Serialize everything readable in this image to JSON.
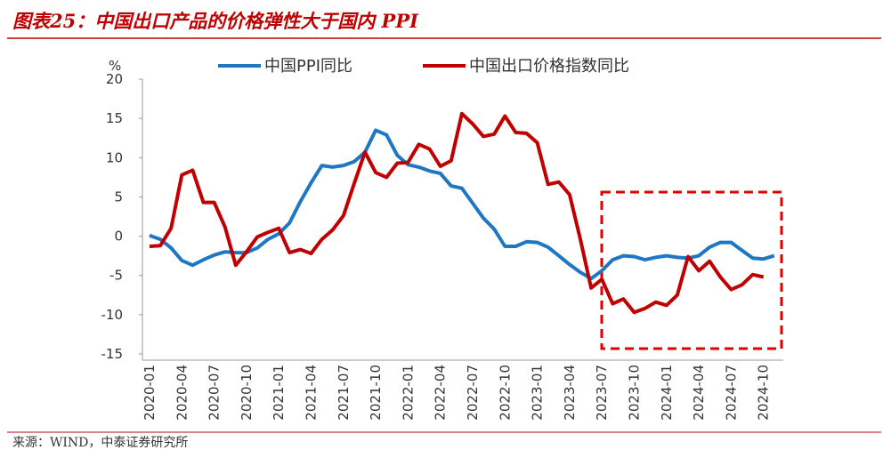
{
  "chart_data": {
    "type": "line",
    "title": "图表25：中国出口产品的价格弹性大于国内 PPI",
    "y_label": "%",
    "source": "来源：WIND，中泰证券研究所",
    "categories": [
      "2020-01",
      null,
      null,
      "2020-04",
      null,
      null,
      "2020-07",
      null,
      null,
      "2020-10",
      null,
      null,
      "2021-01",
      null,
      null,
      "2021-04",
      null,
      null,
      "2021-07",
      null,
      null,
      "2021-10",
      null,
      null,
      "2022-01",
      null,
      null,
      "2022-04",
      null,
      null,
      "2022-07",
      null,
      null,
      "2022-10",
      null,
      null,
      "2023-01",
      null,
      null,
      "2023-04",
      null,
      null,
      "2023-07",
      null,
      null,
      "2023-10",
      null,
      null,
      "2024-01",
      null,
      null,
      "2024-04",
      null,
      null,
      "2024-07",
      null,
      null,
      "2024-10",
      null
    ],
    "series": [
      {
        "name": "中国PPI同比",
        "color": "#1f77c4",
        "values": [
          0.1,
          -0.4,
          -1.5,
          -3.1,
          -3.7,
          -3.0,
          -2.4,
          -2.0,
          -2.1,
          -2.1,
          -1.5,
          -0.4,
          0.3,
          1.7,
          4.4,
          6.8,
          9.0,
          8.8,
          9.0,
          9.5,
          10.7,
          13.5,
          12.9,
          10.3,
          9.1,
          8.8,
          8.3,
          8.0,
          6.4,
          6.1,
          4.2,
          2.3,
          0.9,
          -1.3,
          -1.3,
          -0.7,
          -0.8,
          -1.4,
          -2.5,
          -3.6,
          -4.6,
          -5.4,
          -4.4,
          -3.0,
          -2.5,
          -2.6,
          -3.0,
          -2.7,
          -2.5,
          -2.7,
          -2.8,
          -2.5,
          -1.4,
          -0.8,
          -0.8,
          -1.8,
          -2.8,
          -2.9,
          -2.5
        ]
      },
      {
        "name": "中国出口价格指数同比",
        "color": "#c00000",
        "values": [
          -1.3,
          -1.2,
          1.0,
          7.8,
          8.4,
          4.3,
          4.3,
          1.2,
          -3.7,
          -2.0,
          -0.1,
          0.5,
          1.0,
          -2.1,
          -1.7,
          -2.2,
          -0.4,
          0.8,
          2.6,
          6.7,
          10.7,
          8.1,
          7.5,
          9.3,
          9.4,
          11.7,
          11.1,
          8.9,
          9.6,
          15.6,
          14.3,
          12.7,
          13.0,
          15.3,
          13.2,
          13.1,
          11.9,
          6.6,
          6.9,
          5.3,
          -0.4,
          -6.6,
          -5.5,
          -8.6,
          -8.0,
          -9.7,
          -9.2,
          -8.4,
          -8.8,
          -7.5,
          -2.6,
          -4.4,
          -3.2,
          -5.2,
          -6.8,
          -6.2,
          -4.9,
          -5.2,
          null
        ]
      }
    ],
    "ylim": [
      -15,
      20
    ],
    "yticks": [
      -15,
      -10,
      -5,
      0,
      5,
      10,
      15,
      20
    ]
  }
}
